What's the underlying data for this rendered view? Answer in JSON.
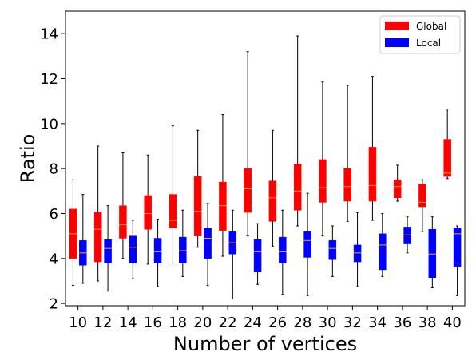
{
  "chart_data": {
    "type": "box",
    "xlabel": "Number of vertices",
    "ylabel": "Ratio",
    "ylim": [
      1.9,
      15.0
    ],
    "yticks": [
      2,
      4,
      6,
      8,
      10,
      12,
      14
    ],
    "categories": [
      "10",
      "12",
      "14",
      "16",
      "18",
      "20",
      "22",
      "24",
      "26",
      "28",
      "30",
      "32",
      "34",
      "36",
      "38",
      "40"
    ],
    "legend": {
      "position": "top-right"
    },
    "series": [
      {
        "name": "Global",
        "color": "#ff0000",
        "median_color": "#ffa500",
        "boxes": [
          {
            "whisker_low": 2.8,
            "q1": 4.0,
            "median": 5.1,
            "q3": 6.2,
            "whisker_high": 7.5
          },
          {
            "whisker_low": 3.0,
            "q1": 3.85,
            "median": 5.3,
            "q3": 6.05,
            "whisker_high": 9.0
          },
          {
            "whisker_low": 4.0,
            "q1": 4.9,
            "median": 5.5,
            "q3": 6.35,
            "whisker_high": 8.7
          },
          {
            "whisker_low": 3.75,
            "q1": 5.3,
            "median": 6.0,
            "q3": 6.8,
            "whisker_high": 8.6
          },
          {
            "whisker_low": 3.8,
            "q1": 5.35,
            "median": 5.7,
            "q3": 6.85,
            "whisker_high": 9.9
          },
          {
            "whisker_low": 4.5,
            "q1": 5.0,
            "median": 6.1,
            "q3": 7.65,
            "whisker_high": 9.7
          },
          {
            "whisker_low": 4.1,
            "q1": 5.25,
            "median": 6.35,
            "q3": 7.4,
            "whisker_high": 10.4
          },
          {
            "whisker_low": 5.0,
            "q1": 6.05,
            "median": 7.1,
            "q3": 8.0,
            "whisker_high": 13.2
          },
          {
            "whisker_low": 4.55,
            "q1": 5.65,
            "median": 6.7,
            "q3": 7.45,
            "whisker_high": 9.7
          },
          {
            "whisker_low": 5.45,
            "q1": 6.15,
            "median": 7.0,
            "q3": 8.2,
            "whisker_high": 13.9
          },
          {
            "whisker_low": 5.0,
            "q1": 6.5,
            "median": 7.15,
            "q3": 8.4,
            "whisker_high": 11.85
          },
          {
            "whisker_low": 5.65,
            "q1": 6.55,
            "median": 7.2,
            "q3": 8.0,
            "whisker_high": 11.7
          },
          {
            "whisker_low": 5.7,
            "q1": 6.55,
            "median": 7.25,
            "q3": 8.95,
            "whisker_high": 12.1
          },
          {
            "whisker_low": 6.55,
            "q1": 6.7,
            "median": 7.2,
            "q3": 7.5,
            "whisker_high": 8.15
          },
          {
            "whisker_low": 5.2,
            "q1": 6.3,
            "median": 6.5,
            "q3": 7.3,
            "whisker_high": 7.5
          },
          {
            "whisker_low": 7.55,
            "q1": 7.65,
            "median": 7.8,
            "q3": 9.3,
            "whisker_high": 10.65
          }
        ]
      },
      {
        "name": "Local",
        "color": "#0000ff",
        "median_color": "#ffa500",
        "boxes": [
          {
            "whisker_low": 2.9,
            "q1": 3.7,
            "median": 4.25,
            "q3": 4.8,
            "whisker_high": 6.85
          },
          {
            "whisker_low": 2.55,
            "q1": 3.8,
            "median": 4.45,
            "q3": 4.85,
            "whisker_high": 6.35
          },
          {
            "whisker_low": 3.1,
            "q1": 3.8,
            "median": 4.5,
            "q3": 5.0,
            "whisker_high": 5.7
          },
          {
            "whisker_low": 2.75,
            "q1": 3.8,
            "median": 4.3,
            "q3": 4.9,
            "whisker_high": 5.75
          },
          {
            "whisker_low": 3.2,
            "q1": 3.8,
            "median": 4.35,
            "q3": 4.95,
            "whisker_high": 6.15
          },
          {
            "whisker_low": 2.8,
            "q1": 4.0,
            "median": 4.9,
            "q3": 5.35,
            "whisker_high": 6.45
          },
          {
            "whisker_low": 2.2,
            "q1": 4.2,
            "median": 4.7,
            "q3": 5.2,
            "whisker_high": 6.15
          },
          {
            "whisker_low": 2.85,
            "q1": 3.4,
            "median": 4.3,
            "q3": 4.85,
            "whisker_high": 5.55
          },
          {
            "whisker_low": 2.4,
            "q1": 3.8,
            "median": 4.3,
            "q3": 4.95,
            "whisker_high": 6.15
          },
          {
            "whisker_low": 2.35,
            "q1": 4.05,
            "median": 4.8,
            "q3": 5.2,
            "whisker_high": 6.9
          },
          {
            "whisker_low": 3.2,
            "q1": 3.95,
            "median": 4.45,
            "q3": 4.8,
            "whisker_high": 5.45
          },
          {
            "whisker_low": 2.75,
            "q1": 3.85,
            "median": 4.25,
            "q3": 4.6,
            "whisker_high": 6.05
          },
          {
            "whisker_low": 3.2,
            "q1": 3.5,
            "median": 4.6,
            "q3": 5.1,
            "whisker_high": 6.0
          },
          {
            "whisker_low": 4.25,
            "q1": 4.65,
            "median": 5.05,
            "q3": 5.4,
            "whisker_high": 5.85
          },
          {
            "whisker_low": 2.7,
            "q1": 3.15,
            "median": 4.2,
            "q3": 5.3,
            "whisker_high": 5.85
          },
          {
            "whisker_low": 2.35,
            "q1": 3.65,
            "median": 5.1,
            "q3": 5.35,
            "whisker_high": 5.45
          }
        ]
      }
    ]
  }
}
